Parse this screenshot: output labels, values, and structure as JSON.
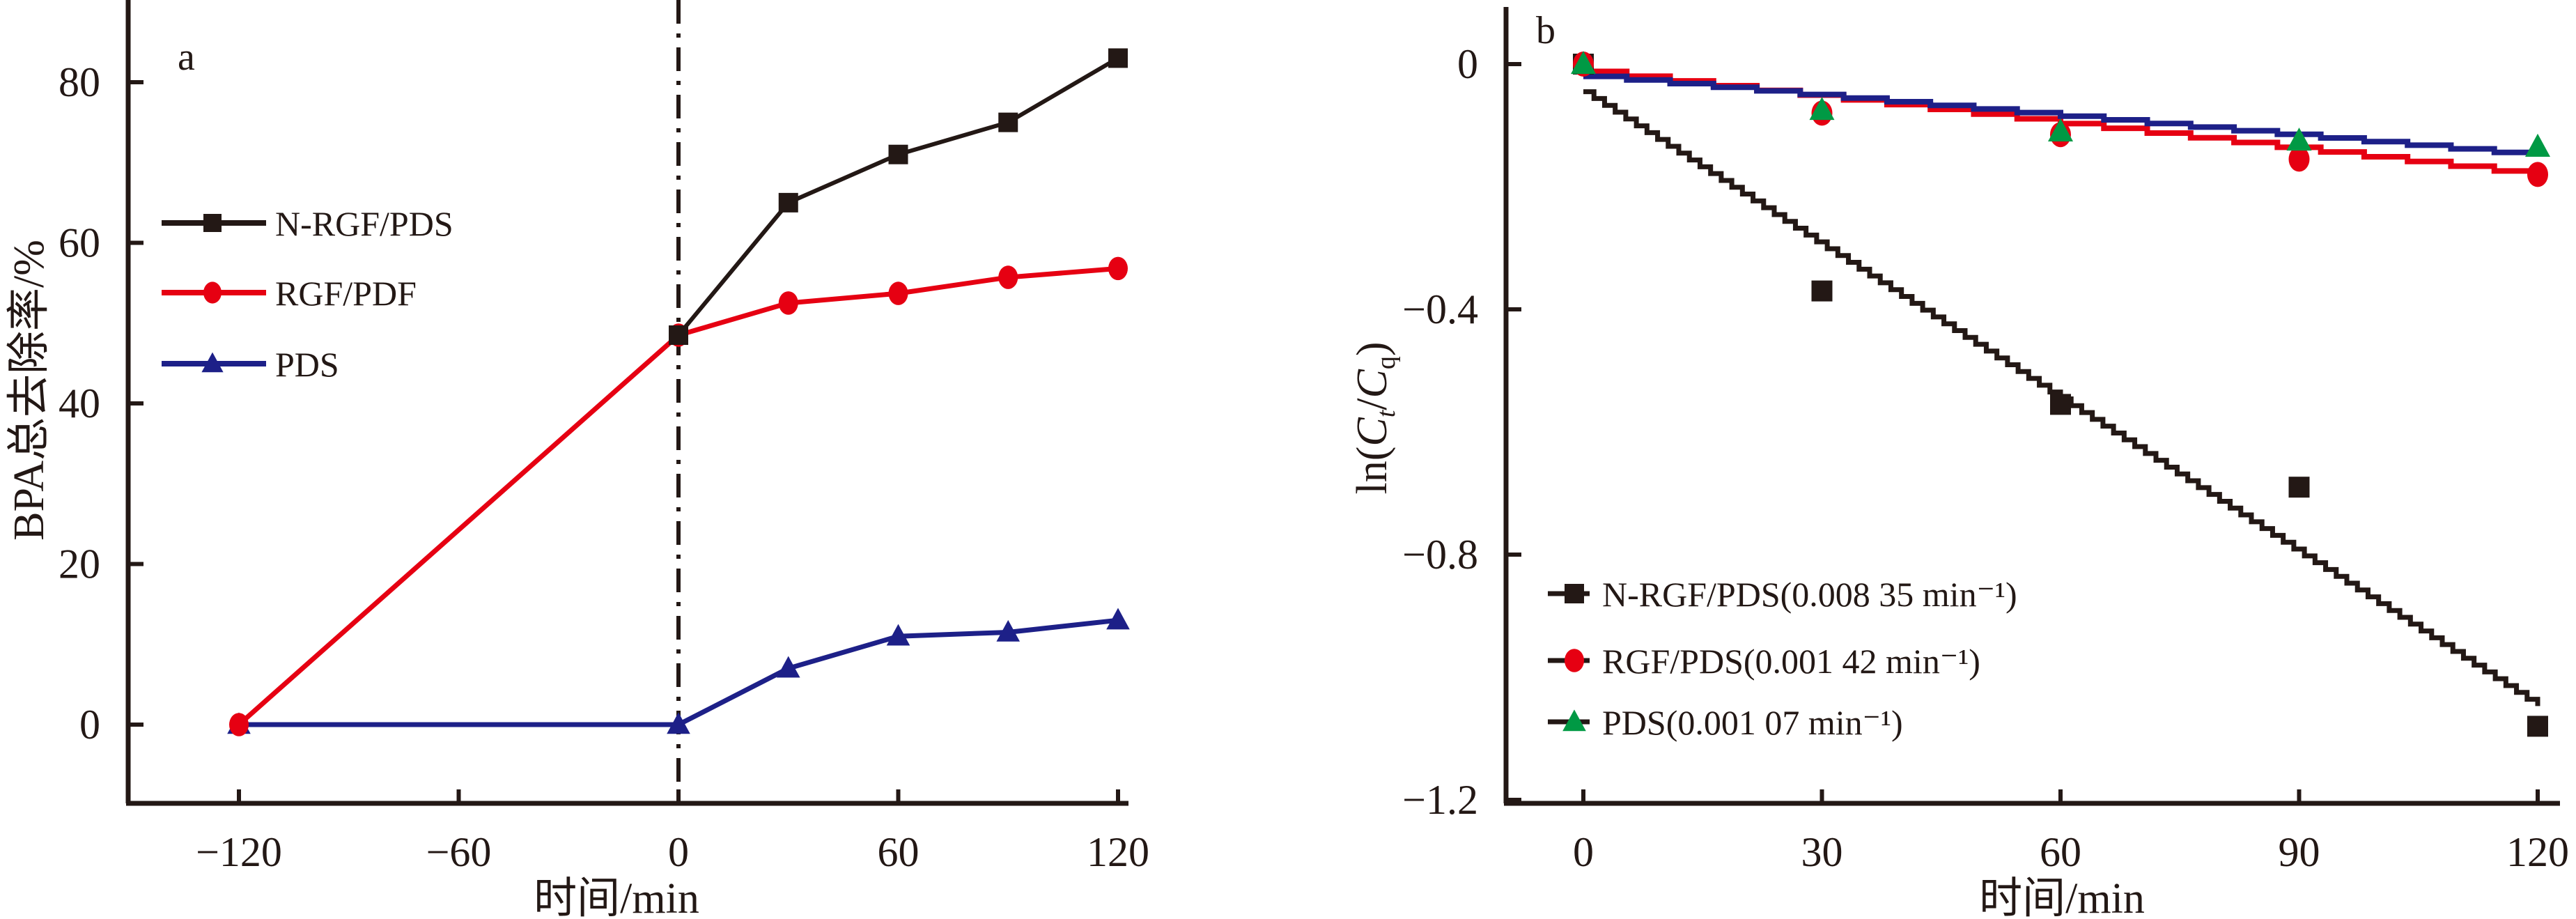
{
  "chart_data": [
    {
      "type": "line",
      "panel_label": "a",
      "title": "",
      "xlabel": "时间/min",
      "ylabel": "BPA总去除率/%",
      "xlim": [
        -160,
        125
      ],
      "ylim": [
        -10,
        90
      ],
      "xticks": [
        -120,
        -60,
        0,
        60,
        120
      ],
      "yticks": [
        0,
        20,
        40,
        60,
        80
      ],
      "xtick_labels": [
        "−120",
        "−60",
        "0",
        "60",
        "120"
      ],
      "ytick_labels": [
        "0",
        "20",
        "40",
        "60",
        "80"
      ],
      "grid": false,
      "legend_position": "middle-left",
      "reference_line": {
        "x": 0,
        "style": "dash-dot"
      },
      "series": [
        {
          "name": "N-RGF/PDS",
          "color": "#231815",
          "marker": "square",
          "x": [
            0,
            30,
            60,
            90,
            120
          ],
          "y": [
            48.5,
            65,
            71,
            75,
            83
          ]
        },
        {
          "name": "RGF/PDF",
          "color": "#e60012",
          "marker": "circle",
          "x": [
            -120,
            0,
            30,
            60,
            90,
            120
          ],
          "y": [
            0,
            48.5,
            52.5,
            53.7,
            55.7,
            56.8
          ]
        },
        {
          "name": "PDS",
          "color": "#1d2088",
          "marker": "triangle",
          "x": [
            -120,
            0,
            30,
            60,
            90,
            120
          ],
          "y": [
            0,
            0,
            7,
            11,
            11.5,
            13
          ]
        }
      ]
    },
    {
      "type": "scatter",
      "panel_label": "b",
      "title": "",
      "xlabel": "时间/min",
      "ylabel": "ln(Ct/Cq)",
      "ylabel_parts": {
        "prefix": "ln(",
        "c1": "C",
        "sub1": "t",
        "slash": "/",
        "c2": "C",
        "sub2": "q",
        "suffix": ")"
      },
      "xlim": [
        -10,
        122
      ],
      "ylim": [
        -1.2,
        0.08
      ],
      "xticks": [
        0,
        30,
        60,
        90,
        120
      ],
      "yticks": [
        0,
        -0.4,
        -0.8,
        -1.2
      ],
      "xtick_labels": [
        "0",
        "30",
        "60",
        "90",
        "120"
      ],
      "ytick_labels": [
        "0",
        "−0.4",
        "−0.8",
        "−1.2"
      ],
      "grid": false,
      "legend_position": "bottom-left",
      "series": [
        {
          "name": "N-RGF/PDS(0.008 35 min⁻¹)",
          "color": "#231815",
          "marker": "square",
          "x": [
            0,
            30,
            60,
            90,
            120
          ],
          "y": [
            0,
            -0.37,
            -0.555,
            -0.69,
            -1.08
          ],
          "fit": {
            "x": [
              0,
              120
            ],
            "y": [
              -0.045,
              -1.047
            ],
            "color": "#231815"
          }
        },
        {
          "name": "RGF/PDS(0.001 42 min⁻¹)",
          "color": "#e60012",
          "marker": "circle",
          "x": [
            0,
            30,
            60,
            90,
            120
          ],
          "y": [
            0,
            -0.08,
            -0.115,
            -0.155,
            -0.18
          ],
          "fit": {
            "x": [
              0,
              120
            ],
            "y": [
              -0.012,
              -0.182
            ],
            "color": "#e60012"
          }
        },
        {
          "name": "PDS(0.001 07 min⁻¹)",
          "color": "#009944",
          "marker": "triangle",
          "x": [
            0,
            30,
            60,
            90,
            120
          ],
          "y": [
            0,
            -0.075,
            -0.11,
            -0.125,
            -0.135
          ],
          "fit": {
            "x": [
              0,
              120
            ],
            "y": [
              -0.02,
              -0.15
            ],
            "color": "#1d2088"
          }
        }
      ]
    }
  ]
}
